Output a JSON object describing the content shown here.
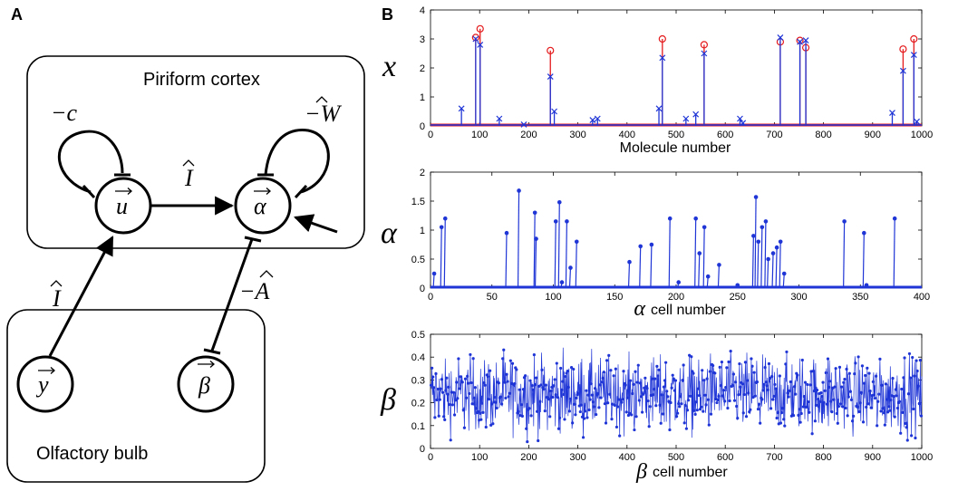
{
  "panel_a": {
    "label": "A",
    "piriform_label": "Piriform cortex",
    "olfactory_label": "Olfactory bulb",
    "node_u": "u",
    "node_alpha": "α",
    "node_y": "y",
    "node_beta": "β",
    "edge_c": "−c",
    "edge_W": "−W",
    "edge_I_top": "I",
    "edge_I_left": "I",
    "edge_A": "−A"
  },
  "panel_b": {
    "label": "B"
  },
  "chart_data": [
    {
      "type": "scatter",
      "ylabel": "x",
      "xlabel": "Molecule number",
      "xlim": [
        0,
        1000
      ],
      "ylim": [
        0,
        4
      ],
      "xticks": [
        0,
        100,
        200,
        300,
        400,
        500,
        600,
        700,
        800,
        900,
        1000
      ],
      "yticks": [
        0,
        1,
        2,
        3,
        4
      ],
      "series": [
        {
          "marker": "circle",
          "color": "#e41a1c",
          "x": [
            92,
            101,
            244,
            472,
            557,
            712,
            752,
            764,
            962,
            984
          ],
          "y": [
            3.05,
            3.35,
            2.6,
            3.0,
            2.8,
            2.9,
            2.95,
            2.7,
            2.65,
            3.0
          ]
        },
        {
          "marker": "x",
          "color": "#1f35d6",
          "x": [
            63,
            92,
            101,
            140,
            190,
            244,
            252,
            330,
            340,
            465,
            472,
            520,
            540,
            557,
            630,
            636,
            712,
            752,
            764,
            940,
            962,
            984,
            990
          ],
          "y": [
            0.6,
            3.0,
            2.8,
            0.25,
            0.05,
            1.7,
            0.5,
            0.2,
            0.25,
            0.6,
            2.35,
            0.25,
            0.4,
            2.5,
            0.25,
            0.1,
            3.05,
            2.9,
            2.95,
            0.45,
            1.9,
            2.45,
            0.15
          ]
        }
      ]
    },
    {
      "type": "line",
      "ylabel": "α",
      "xlabel_symbol": "α",
      "xlabel": "cell number",
      "xlim": [
        0,
        400
      ],
      "ylim": [
        0,
        2
      ],
      "xticks": [
        0,
        50,
        100,
        150,
        200,
        250,
        300,
        350,
        400
      ],
      "yticks": [
        0,
        0.5,
        1,
        1.5,
        2
      ],
      "series": [
        {
          "color": "#1f35d6",
          "x": [
            3,
            9,
            12,
            62,
            72,
            85,
            86,
            102,
            105,
            107,
            111,
            114,
            119,
            162,
            171,
            180,
            195,
            202,
            216,
            219,
            223,
            226,
            235,
            250,
            263,
            265,
            267,
            270,
            273,
            275,
            279,
            282,
            285,
            288,
            337,
            353,
            355,
            378
          ],
          "y": [
            0.25,
            1.05,
            1.2,
            0.95,
            1.68,
            1.3,
            0.85,
            1.15,
            1.48,
            0.1,
            1.15,
            0.35,
            0.8,
            0.45,
            0.72,
            0.75,
            1.2,
            0.1,
            1.2,
            0.6,
            1.05,
            0.2,
            0.4,
            0.05,
            0.9,
            1.57,
            0.8,
            1.05,
            1.15,
            0.5,
            0.6,
            0.7,
            0.8,
            0.25,
            1.15,
            0.95,
            0.05,
            1.2
          ]
        }
      ]
    },
    {
      "type": "line",
      "ylabel": "β",
      "xlabel_symbol": "β",
      "xlabel": "cell number",
      "xlim": [
        0,
        1000
      ],
      "ylim": [
        0,
        0.5
      ],
      "xticks": [
        0,
        100,
        200,
        300,
        400,
        500,
        600,
        700,
        800,
        900,
        1000
      ],
      "yticks": [
        0,
        0.1,
        0.2,
        0.3,
        0.4,
        0.5
      ],
      "n_points": 1000,
      "value_range": [
        0,
        0.5
      ],
      "series": [
        {
          "color": "#1f35d6"
        }
      ]
    }
  ]
}
